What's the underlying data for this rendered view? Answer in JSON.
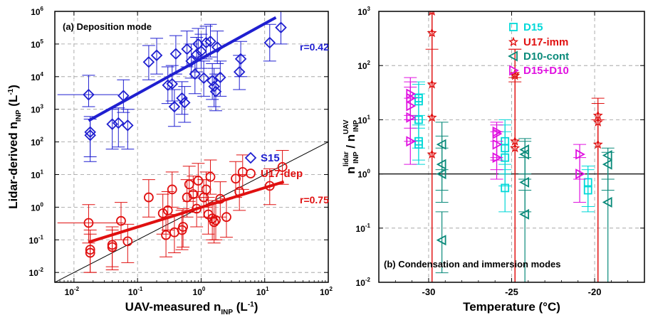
{
  "chart_data": [
    {
      "type": "scatter",
      "panel_label": "(a) Deposition mode",
      "xlabel": "UAV-measured n",
      "xlabel_sub": "INP",
      "xlabel_unit": " (L",
      "xlabel_unit_sup": "-1",
      "xlabel_unit_end": ")",
      "ylabel": "Lidar-derived n",
      "ylabel_sub": "INP",
      "ylabel_unit": " (L",
      "ylabel_unit_sup": "-1",
      "ylabel_unit_end": ")",
      "x_scale": "log",
      "y_scale": "log",
      "xlim": [
        0.005,
        100
      ],
      "ylim": [
        0.005,
        1000000
      ],
      "x_ticks": [
        0.01,
        0.1,
        1,
        10,
        100
      ],
      "x_tick_labels": [
        {
          "base": "10",
          "exp": "-2"
        },
        {
          "base": "10",
          "exp": "-1"
        },
        {
          "base": "10",
          "exp": "0"
        },
        {
          "base": "10",
          "exp": "1"
        },
        {
          "base": "10",
          "exp": "2"
        }
      ],
      "y_ticks": [
        0.01,
        0.1,
        1,
        10,
        100,
        1000,
        10000,
        100000,
        1000000
      ],
      "y_tick_labels": [
        {
          "base": "10",
          "exp": "-2"
        },
        {
          "base": "10",
          "exp": "-1"
        },
        {
          "base": "10",
          "exp": "0"
        },
        {
          "base": "10",
          "exp": "1"
        },
        {
          "base": "10",
          "exp": "2"
        },
        {
          "base": "10",
          "exp": "3"
        },
        {
          "base": "10",
          "exp": "4"
        },
        {
          "base": "10",
          "exp": "5"
        },
        {
          "base": "10",
          "exp": "6"
        }
      ],
      "grid": true,
      "legend_position": "right-middle",
      "one_to_one_line": true,
      "series": [
        {
          "name": "S15",
          "color": "#1f1fd0",
          "marker": "diamond",
          "fit": {
            "x": [
              0.017,
              15
            ],
            "y": [
              450,
              650000
            ]
          },
          "annotation": "r=0.42",
          "points": [
            {
              "x": 0.017,
              "y": 2800,
              "ylo": 1200,
              "yhi": 11000,
              "xlo": 0.0055,
              "xhi": 0.05
            },
            {
              "x": 0.018,
              "y": 200,
              "ylo": 35,
              "yhi": 600
            },
            {
              "x": 0.018,
              "y": 160,
              "ylo": 25,
              "yhi": 500
            },
            {
              "x": 0.04,
              "y": 350,
              "ylo": 60,
              "yhi": 1000
            },
            {
              "x": 0.06,
              "y": 2600,
              "ylo": 800,
              "yhi": 8000
            },
            {
              "x": 0.05,
              "y": 380,
              "ylo": 70,
              "yhi": 1100
            },
            {
              "x": 0.07,
              "y": 320,
              "ylo": 60,
              "yhi": 1000
            },
            {
              "x": 0.15,
              "y": 28000,
              "ylo": 8000,
              "yhi": 90000
            },
            {
              "x": 0.2,
              "y": 45000,
              "ylo": 12000,
              "yhi": 150000
            },
            {
              "x": 0.3,
              "y": 5500,
              "ylo": 1500,
              "yhi": 20000
            },
            {
              "x": 0.35,
              "y": 6000,
              "ylo": 1800,
              "yhi": 22000
            },
            {
              "x": 0.4,
              "y": 50000,
              "ylo": 12000,
              "yhi": 180000
            },
            {
              "x": 0.38,
              "y": 1200,
              "ylo": 300,
              "yhi": 4000
            },
            {
              "x": 0.5,
              "y": 2200,
              "ylo": 700,
              "yhi": 7000
            },
            {
              "x": 0.55,
              "y": 1600,
              "ylo": 400,
              "yhi": 5000
            },
            {
              "x": 0.6,
              "y": 70000,
              "ylo": 20000,
              "yhi": 250000
            },
            {
              "x": 0.7,
              "y": 30000,
              "ylo": 9000,
              "yhi": 100000
            },
            {
              "x": 0.8,
              "y": 12000,
              "ylo": 3000,
              "yhi": 40000
            },
            {
              "x": 0.85,
              "y": 48000,
              "ylo": 14000,
              "yhi": 160000
            },
            {
              "x": 0.9,
              "y": 100000,
              "ylo": 30000,
              "yhi": 300000
            },
            {
              "x": 1.0,
              "y": 60000,
              "ylo": 18000,
              "yhi": 200000
            },
            {
              "x": 1.1,
              "y": 9000,
              "ylo": 2500,
              "yhi": 30000
            },
            {
              "x": 1.2,
              "y": 110000,
              "ylo": 35000,
              "yhi": 350000
            },
            {
              "x": 1.4,
              "y": 120000,
              "ylo": 40000,
              "yhi": 400000
            },
            {
              "x": 1.5,
              "y": 7500,
              "ylo": 2000,
              "yhi": 25000
            },
            {
              "x": 1.6,
              "y": 5000,
              "ylo": 1200,
              "yhi": 18000
            },
            {
              "x": 1.7,
              "y": 3500,
              "ylo": 900,
              "yhi": 12000
            },
            {
              "x": 1.8,
              "y": 80000,
              "ylo": 25000,
              "yhi": 250000
            },
            {
              "x": 2.0,
              "y": 9500,
              "ylo": 2500,
              "yhi": 30000
            },
            {
              "x": 4.0,
              "y": 14000,
              "ylo": 4000,
              "yhi": 45000
            },
            {
              "x": 4.2,
              "y": 35000,
              "ylo": 10000,
              "yhi": 120000
            },
            {
              "x": 12,
              "y": 110000,
              "ylo": 30000,
              "yhi": 400000
            },
            {
              "x": 18,
              "y": 320000,
              "ylo": 100000,
              "yhi": 1000000
            }
          ]
        },
        {
          "name": "U17-dep",
          "color": "#e01010",
          "marker": "circle",
          "fit": {
            "x": [
              0.017,
              20
            ],
            "y": [
              0.085,
              6
            ]
          },
          "annotation": "r=0.75",
          "points": [
            {
              "x": 0.017,
              "y": 0.33,
              "ylo": 0.08,
              "yhi": 1.2,
              "xlo": 0.0055,
              "xhi": 0.06
            },
            {
              "x": 0.018,
              "y": 0.05,
              "ylo": 0.01,
              "yhi": 0.2
            },
            {
              "x": 0.018,
              "y": 0.04,
              "ylo": 0.01,
              "yhi": 0.15
            },
            {
              "x": 0.04,
              "y": 0.06,
              "ylo": 0.012,
              "yhi": 0.2
            },
            {
              "x": 0.04,
              "y": 0.07,
              "ylo": 0.015,
              "yhi": 0.25
            },
            {
              "x": 0.055,
              "y": 0.38,
              "ylo": 0.1,
              "yhi": 1.4
            },
            {
              "x": 0.07,
              "y": 0.09,
              "ylo": 0.02,
              "yhi": 0.3
            },
            {
              "x": 0.15,
              "y": 2.0,
              "ylo": 0.5,
              "yhi": 7
            },
            {
              "x": 0.25,
              "y": 0.65,
              "ylo": 0.15,
              "yhi": 2.5
            },
            {
              "x": 0.28,
              "y": 0.14,
              "ylo": 0.03,
              "yhi": 0.5
            },
            {
              "x": 0.3,
              "y": 0.8,
              "ylo": 0.2,
              "yhi": 3
            },
            {
              "x": 0.35,
              "y": 3.5,
              "ylo": 1,
              "yhi": 12
            },
            {
              "x": 0.38,
              "y": 0.17,
              "ylo": 0.04,
              "yhi": 0.6
            },
            {
              "x": 0.5,
              "y": 0.2,
              "ylo": 0.05,
              "yhi": 0.8
            },
            {
              "x": 0.52,
              "y": 0.25,
              "ylo": 0.06,
              "yhi": 0.9
            },
            {
              "x": 0.6,
              "y": 2.0,
              "ylo": 0.5,
              "yhi": 7
            },
            {
              "x": 0.65,
              "y": 5.0,
              "ylo": 1.5,
              "yhi": 18
            },
            {
              "x": 0.75,
              "y": 2.5,
              "ylo": 0.7,
              "yhi": 9
            },
            {
              "x": 0.85,
              "y": 0.9,
              "ylo": 0.25,
              "yhi": 3
            },
            {
              "x": 0.9,
              "y": 6.5,
              "ylo": 2,
              "yhi": 22
            },
            {
              "x": 1.1,
              "y": 2.0,
              "ylo": 0.5,
              "yhi": 7
            },
            {
              "x": 1.2,
              "y": 3.5,
              "ylo": 1,
              "yhi": 12
            },
            {
              "x": 1.3,
              "y": 0.6,
              "ylo": 0.15,
              "yhi": 2
            },
            {
              "x": 1.4,
              "y": 8.5,
              "ylo": 2.5,
              "yhi": 28
            },
            {
              "x": 1.5,
              "y": 0.45,
              "ylo": 0.1,
              "yhi": 1.6
            },
            {
              "x": 1.6,
              "y": 0.35,
              "ylo": 0.08,
              "yhi": 1.3
            },
            {
              "x": 1.7,
              "y": 0.4,
              "ylo": 0.1,
              "yhi": 1.4
            },
            {
              "x": 2.0,
              "y": 1.8,
              "ylo": 0.5,
              "yhi": 6
            },
            {
              "x": 2.5,
              "y": 0.5,
              "ylo": 0.12,
              "yhi": 1.8
            },
            {
              "x": 3.5,
              "y": 7.5,
              "ylo": 2,
              "yhi": 25
            },
            {
              "x": 4.0,
              "y": 3.0,
              "ylo": 0.8,
              "yhi": 10
            },
            {
              "x": 4.5,
              "y": 12,
              "ylo": 3.5,
              "yhi": 40
            },
            {
              "x": 12,
              "y": 4.5,
              "ylo": 1.2,
              "yhi": 15
            },
            {
              "x": 19,
              "y": 17,
              "ylo": 5,
              "yhi": 55
            }
          ]
        }
      ]
    },
    {
      "type": "scatter",
      "panel_label": "(b) Condensation and immersion modes",
      "xlabel": "Temperature (°C)",
      "ylabel": "n",
      "ylabel_sub": "INP",
      "ylabel_sup": "lidar",
      "ylabel_mid": " / n",
      "ylabel_sub2": "INP",
      "ylabel_sup2": "UAV",
      "x_scale": "linear",
      "y_scale": "log",
      "xlim": [
        -33,
        -17
      ],
      "ylim": [
        0.01,
        1000
      ],
      "x_ticks": [
        -30,
        -25,
        -20
      ],
      "x_tick_labels": [
        "-30",
        "-25",
        "-20"
      ],
      "y_ticks": [
        0.01,
        0.1,
        1,
        10,
        100,
        1000
      ],
      "y_tick_labels": [
        {
          "base": "10",
          "exp": "-2"
        },
        {
          "base": "10",
          "exp": "-1"
        },
        {
          "base": "10",
          "exp": "0"
        },
        {
          "base": "10",
          "exp": "1"
        },
        {
          "base": "10",
          "exp": "2"
        },
        {
          "base": "10",
          "exp": "3"
        }
      ],
      "grid": true,
      "legend_position": "top-right",
      "reference_line_y": 1,
      "series": [
        {
          "name": "D15",
          "color": "#00d8d8",
          "marker": "square",
          "points": [
            {
              "x": -30.6,
              "y": 25,
              "ylo": 8,
              "yhi": 50
            },
            {
              "x": -30.6,
              "y": 22,
              "ylo": 7,
              "yhi": 45
            },
            {
              "x": -30.6,
              "y": 10,
              "ylo": 3,
              "yhi": 30
            },
            {
              "x": -30.6,
              "y": 4,
              "ylo": 1.8,
              "yhi": 12
            },
            {
              "x": -30.6,
              "y": 3.5,
              "ylo": 1.5,
              "yhi": 10
            },
            {
              "x": -25.4,
              "y": 4,
              "ylo": 1.2,
              "yhi": 10
            },
            {
              "x": -25.4,
              "y": 3,
              "ylo": 1,
              "yhi": 8
            },
            {
              "x": -25.4,
              "y": 2,
              "ylo": 0.6,
              "yhi": 6
            },
            {
              "x": -25.4,
              "y": 0.55,
              "ylo": 0.2,
              "yhi": 1.5
            },
            {
              "x": -20.4,
              "y": 0.7,
              "ylo": 0.25,
              "yhi": 1.4
            },
            {
              "x": -20.4,
              "y": 0.5,
              "ylo": 0.2,
              "yhi": 1.2
            }
          ]
        },
        {
          "name": "U17-imm",
          "color": "#e01010",
          "marker": "star",
          "points": [
            {
              "x": -29.8,
              "y": 1000,
              "ylo": 200,
              "yhi": 1000
            },
            {
              "x": -29.8,
              "y": 400,
              "ylo": 0.01,
              "yhi": 1000
            },
            {
              "x": -29.8,
              "y": 45,
              "ylo": 0.01,
              "yhi": 1000
            },
            {
              "x": -29.8,
              "y": 11,
              "ylo": 0.01,
              "yhi": 1000
            },
            {
              "x": -29.8,
              "y": 2.3,
              "ylo": 0.01,
              "yhi": 1000
            },
            {
              "x": -24.8,
              "y": 70,
              "ylo": 0.01,
              "yhi": 200
            },
            {
              "x": -24.8,
              "y": 65,
              "ylo": 0.01,
              "yhi": 200
            },
            {
              "x": -24.8,
              "y": 4,
              "ylo": 0.01,
              "yhi": 60
            },
            {
              "x": -24.8,
              "y": 3,
              "ylo": 0.01,
              "yhi": 50
            },
            {
              "x": -19.8,
              "y": 12,
              "ylo": 0.01,
              "yhi": 25
            },
            {
              "x": -19.8,
              "y": 9,
              "ylo": 0.01,
              "yhi": 20
            },
            {
              "x": -19.8,
              "y": 3.5,
              "ylo": 0.01,
              "yhi": 10
            }
          ]
        },
        {
          "name": "D10-cont",
          "color": "#0a8a7a",
          "marker": "triangle-left",
          "points": [
            {
              "x": -29.2,
              "y": 3.5,
              "ylo": 1.2,
              "yhi": 9
            },
            {
              "x": -29.2,
              "y": 1.5,
              "ylo": 0.5,
              "yhi": 5
            },
            {
              "x": -29.2,
              "y": 1.0,
              "ylo": 0.3,
              "yhi": 3
            },
            {
              "x": -29.2,
              "y": 0.06,
              "ylo": 0.015,
              "yhi": 0.2
            },
            {
              "x": -24.2,
              "y": 2.8,
              "ylo": 1,
              "yhi": 4.5
            },
            {
              "x": -24.2,
              "y": 2.3,
              "ylo": 0.8,
              "yhi": 4
            },
            {
              "x": -24.2,
              "y": 0.7,
              "ylo": 0.2,
              "yhi": 2
            },
            {
              "x": -24.2,
              "y": 0.18,
              "ylo": 0.01,
              "yhi": 0.5
            },
            {
              "x": -19.2,
              "y": 2.2,
              "ylo": 0.8,
              "yhi": 3
            },
            {
              "x": -19.2,
              "y": 1.5,
              "ylo": 0.5,
              "yhi": 2.5
            },
            {
              "x": -19.2,
              "y": 0.3,
              "ylo": 0.01,
              "yhi": 0.8
            }
          ]
        },
        {
          "name": "D15+D10",
          "color": "#e010e0",
          "marker": "triangle-right",
          "points": [
            {
              "x": -31.1,
              "y": 30,
              "ylo": 12,
              "yhi": 60
            },
            {
              "x": -31.1,
              "y": 25,
              "ylo": 10,
              "yhi": 50
            },
            {
              "x": -31.1,
              "y": 18,
              "ylo": 7,
              "yhi": 40
            },
            {
              "x": -31.1,
              "y": 11,
              "ylo": 4,
              "yhi": 25
            },
            {
              "x": -31.1,
              "y": 4,
              "ylo": 1.5,
              "yhi": 10
            },
            {
              "x": -25.9,
              "y": 6,
              "ylo": 2,
              "yhi": 9
            },
            {
              "x": -25.9,
              "y": 5.5,
              "ylo": 1.8,
              "yhi": 8
            },
            {
              "x": -25.9,
              "y": 3.5,
              "ylo": 1.2,
              "yhi": 6
            },
            {
              "x": -25.9,
              "y": 2,
              "ylo": 0.8,
              "yhi": 4
            },
            {
              "x": -20.9,
              "y": 2.3,
              "ylo": 0.8,
              "yhi": 3.5
            },
            {
              "x": -20.9,
              "y": 1.0,
              "ylo": 0.3,
              "yhi": 2
            }
          ]
        }
      ]
    }
  ]
}
